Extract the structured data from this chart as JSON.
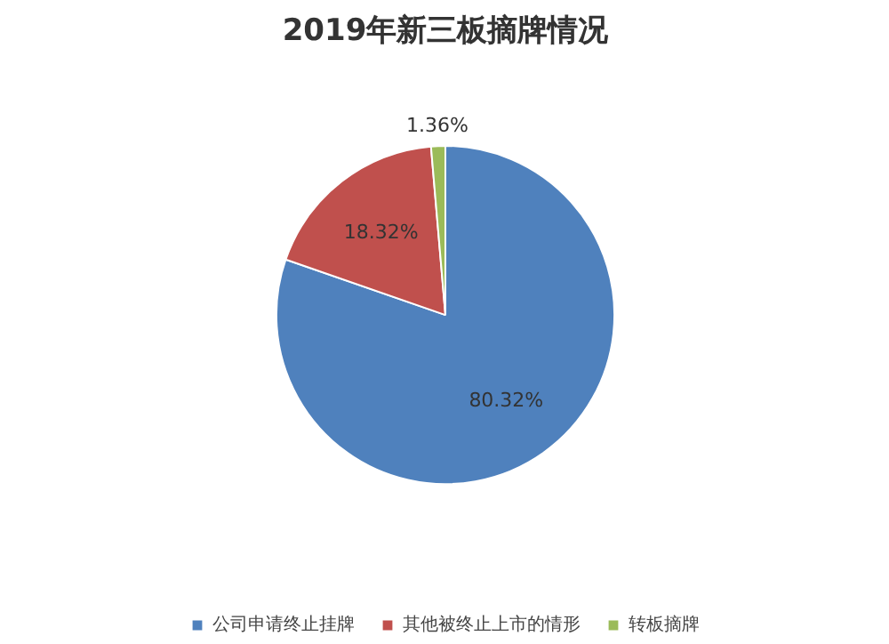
{
  "chart_data": {
    "type": "pie",
    "title": "2019年新三板摘牌情况",
    "categories": [
      "公司申请终止挂牌",
      "其他被终止上市的情形",
      "转板摘牌"
    ],
    "values": [
      80.32,
      18.32,
      1.36
    ],
    "colors": [
      "#4f81bd",
      "#c0504d",
      "#9bbb59"
    ],
    "value_labels": [
      "80.32%",
      "18.32%",
      "1.36%"
    ],
    "legend": "bottom"
  }
}
